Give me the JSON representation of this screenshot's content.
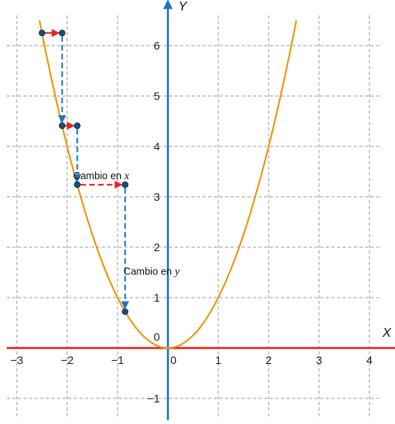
{
  "chart_data": {
    "type": "line",
    "function": "y = x^2",
    "xlabel": "X",
    "ylabel": "Y",
    "xlim": [
      -3.2,
      4.25
    ],
    "ylim": [
      -1.4,
      6.6
    ],
    "x_ticks": [
      {
        "value": -3,
        "label": "−3"
      },
      {
        "value": -2,
        "label": "−2"
      },
      {
        "value": -1,
        "label": "−1"
      },
      {
        "value": 0,
        "label": "0"
      },
      {
        "value": 1,
        "label": "1"
      },
      {
        "value": 2,
        "label": "2"
      },
      {
        "value": 3,
        "label": "3"
      },
      {
        "value": 4,
        "label": "4"
      }
    ],
    "y_ticks": [
      {
        "value": -1,
        "label": "−1"
      },
      {
        "value": 1,
        "label": "1"
      },
      {
        "value": 2,
        "label": "2"
      },
      {
        "value": 3,
        "label": "3"
      },
      {
        "value": 4,
        "label": "4"
      },
      {
        "value": 5,
        "label": "5"
      },
      {
        "value": 6,
        "label": "6"
      }
    ],
    "origin_label": "0",
    "grid": true,
    "colors": {
      "curve": "#f39200",
      "x_axis": "#e52421",
      "y_axis": "#1a75bb",
      "x_change": "#e52421",
      "y_change": "#1a75bb",
      "points": "#1b4f7a",
      "grid": "#9a9a9a"
    },
    "curve": {
      "x_from": -2.55,
      "x_to": 2.55
    },
    "points": [
      {
        "x": -2.5,
        "y": 6.25
      },
      {
        "x": -2.1,
        "y": 6.25
      },
      {
        "x": -2.1,
        "y": 4.41
      },
      {
        "x": -1.8,
        "y": 4.41
      },
      {
        "x": -1.8,
        "y": 3.24
      },
      {
        "x": -0.85,
        "y": 3.24
      },
      {
        "x": -0.85,
        "y": 0.72
      }
    ],
    "steps": [
      {
        "dx": [
          -2.5,
          -2.1
        ],
        "y": 6.25,
        "dy": [
          6.25,
          4.41
        ]
      },
      {
        "dx": [
          -2.1,
          -1.8
        ],
        "y": 4.41,
        "dy": [
          4.41,
          3.24
        ]
      },
      {
        "dx": [
          -1.8,
          -0.85
        ],
        "y": 3.24,
        "dy": [
          3.24,
          0.72
        ]
      }
    ],
    "annotations": [
      {
        "prefix": "Cambio en ",
        "var": "x",
        "at": [
          -1.88,
          3.35
        ]
      },
      {
        "prefix": "Cambio en ",
        "var": "y",
        "at": [
          -0.88,
          1.45
        ]
      }
    ]
  }
}
